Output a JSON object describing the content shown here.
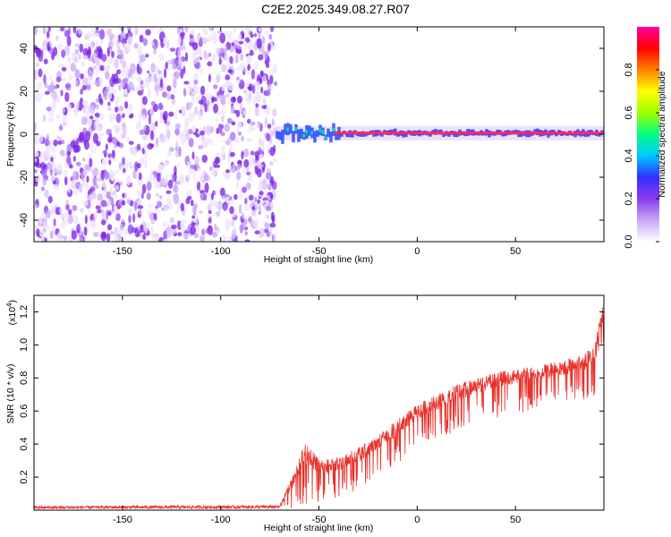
{
  "title": "C2E2.2025.349.08.27.R07",
  "chart_data": [
    {
      "type": "heatmap",
      "name": "spectrogram",
      "xlabel": "Height of straight line (km)",
      "ylabel": "Frequency (Hz)",
      "xlim": [
        -195,
        95
      ],
      "ylim": [
        -50,
        50
      ],
      "xticks": [
        -150,
        -100,
        -50,
        0,
        50
      ],
      "yticks": [
        -40,
        -20,
        0,
        20,
        40
      ],
      "noise_region_x": [
        -195,
        -72
      ],
      "signal_start_x": -72,
      "signal_freq_hz": 0.5,
      "colorbar": {
        "label": "Normalized spectral amplitude",
        "range": [
          0,
          1
        ],
        "ticks": [
          "0.0",
          "0.2",
          "0.4",
          "0.6",
          "0.8"
        ],
        "colors": [
          "#ffffff",
          "#c8a8f8",
          "#8a3cf0",
          "#3030ff",
          "#00c8ff",
          "#00ff80",
          "#a0ff00",
          "#ffff00",
          "#ff8000",
          "#ff0000",
          "#ff00a0"
        ]
      }
    },
    {
      "type": "line",
      "name": "snr",
      "xlabel": "Height of straight line (km)",
      "ylabel": "SNR (10 * v/v)",
      "y_scale_label": "(x10",
      "y_scale_exp": "4",
      "y_scale_close": ")",
      "xlim": [
        -195,
        95
      ],
      "ylim": [
        0,
        1.3
      ],
      "xticks": [
        -150,
        -100,
        -50,
        0,
        50
      ],
      "yticks": [
        0.2,
        0.4,
        0.6,
        0.8,
        1.0,
        1.2
      ],
      "ytick_labels": [
        "0.2",
        "0.4",
        "0.6",
        "0.8",
        "1.0",
        "1.2"
      ],
      "color": "#e8302a",
      "envelope": {
        "x": [
          -195,
          -70,
          -62,
          -58,
          -55,
          -50,
          -40,
          -30,
          -20,
          -10,
          0,
          10,
          20,
          30,
          40,
          50,
          60,
          70,
          80,
          90,
          95
        ],
        "upper": [
          0.025,
          0.03,
          0.25,
          0.4,
          0.4,
          0.3,
          0.32,
          0.38,
          0.45,
          0.55,
          0.64,
          0.7,
          0.76,
          0.8,
          0.84,
          0.85,
          0.88,
          0.9,
          0.93,
          0.98,
          1.28
        ],
        "lower": [
          0.0,
          0.0,
          0.0,
          0.02,
          0.05,
          0.05,
          0.08,
          0.12,
          0.2,
          0.28,
          0.38,
          0.42,
          0.48,
          0.52,
          0.55,
          0.58,
          0.6,
          0.62,
          0.64,
          0.66,
          0.5
        ]
      }
    }
  ]
}
